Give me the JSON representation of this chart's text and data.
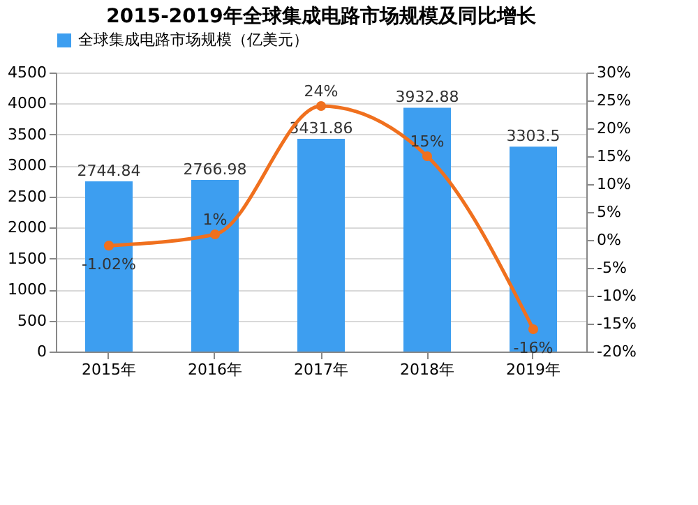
{
  "chart_data": {
    "type": "bar",
    "title": "2015-2019年全球集成电路市场规模及同比增长",
    "categories": [
      "2015年",
      "2016年",
      "2017年",
      "2018年",
      "2019年"
    ],
    "series": [
      {
        "name": "全球集成电路市场规模（亿美元）",
        "color": "#3d9ef0",
        "values": [
          2744.84,
          2766.98,
          3431.86,
          3932.88,
          3303.5
        ],
        "value_labels": [
          "2744.84",
          "2766.98",
          "3431.86",
          "3932.88",
          "3303.5"
        ]
      },
      {
        "type": "line",
        "axis": "y2",
        "color": "#f0701e",
        "values": [
          -1.02,
          1,
          24,
          15,
          -16
        ],
        "value_labels": [
          "-1.02%",
          "1%",
          "24%",
          "15%",
          "-16%"
        ]
      }
    ],
    "ylim": [
      0,
      4500
    ],
    "yticks": [
      0,
      500,
      1000,
      1500,
      2000,
      2500,
      3000,
      3500,
      4000,
      4500
    ],
    "y2lim": [
      -20,
      30
    ],
    "y2ticks": [
      {
        "value": -20,
        "label": "-20%"
      },
      {
        "value": -15,
        "label": "-15%"
      },
      {
        "value": -10,
        "label": "-10%"
      },
      {
        "value": -5,
        "label": "-5%"
      },
      {
        "value": 0,
        "label": "0%"
      },
      {
        "value": 5,
        "label": "5%"
      },
      {
        "value": 10,
        "label": "10%"
      },
      {
        "value": 15,
        "label": "15%"
      },
      {
        "value": 20,
        "label": "20%"
      },
      {
        "value": 25,
        "label": "25%"
      },
      {
        "value": 30,
        "label": "30%"
      }
    ],
    "grid": "y",
    "legend": "top",
    "marker": "circle",
    "line_style": "solid"
  }
}
